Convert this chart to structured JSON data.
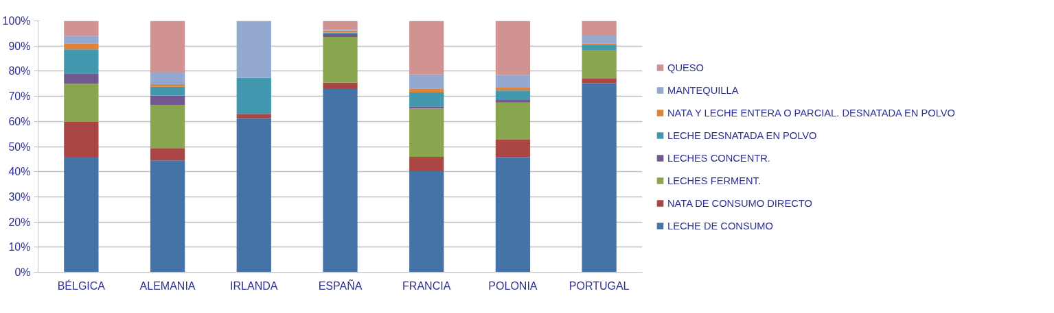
{
  "chart_data": {
    "type": "bar",
    "stacked": true,
    "categories": [
      "BÉLGICA",
      "ALEMANIA",
      "IRLANDA",
      "ESPAÑA",
      "FRANCIA",
      "POLONIA",
      "PORTUGAL"
    ],
    "series": [
      {
        "name": "LECHE DE CONSUMO",
        "color": "#4573a7",
        "values": [
          45.9,
          44.5,
          61.3,
          72.9,
          40.2,
          45.8,
          75.2
        ]
      },
      {
        "name": "NATA DE CONSUMO DIRECTO",
        "color": "#aa4643",
        "values": [
          13.9,
          4.9,
          1.7,
          2.6,
          5.7,
          6.9,
          2.0
        ]
      },
      {
        "name": "LECHES FERMENT.",
        "color": "#89a54e",
        "values": [
          15.2,
          17.2,
          0,
          18.1,
          19.2,
          14.8,
          11.2
        ]
      },
      {
        "name": "LECHES CONCENTR.",
        "color": "#71588f",
        "values": [
          4.1,
          3.6,
          0,
          1.1,
          0.9,
          1.0,
          0
        ]
      },
      {
        "name": "LECHE DESNATADA EN POLVO",
        "color": "#4198af",
        "values": [
          9.5,
          3.6,
          14.4,
          0.7,
          5.5,
          3.8,
          1.9
        ]
      },
      {
        "name": "NATA Y LECHE ENTERA O PARCIAL. DESNATADA EN POLVO",
        "color": "#db843d",
        "values": [
          2.5,
          1.0,
          0,
          0.7,
          1.6,
          1.1,
          0.8
        ]
      },
      {
        "name": "MANTEQUILLA",
        "color": "#93a9cf",
        "values": [
          3.0,
          4.6,
          22.6,
          0.4,
          5.6,
          5.0,
          3.3
        ]
      },
      {
        "name": "QUESO",
        "color": "#d19392",
        "values": [
          5.9,
          20.6,
          0,
          3.5,
          21.3,
          21.6,
          5.6
        ]
      }
    ],
    "ylim": [
      0,
      100
    ],
    "yticks": [
      {
        "value": 0,
        "label": "0%"
      },
      {
        "value": 10,
        "label": "10%"
      },
      {
        "value": 20,
        "label": "20%"
      },
      {
        "value": 30,
        "label": "30%"
      },
      {
        "value": 40,
        "label": "40%"
      },
      {
        "value": 50,
        "label": "50%"
      },
      {
        "value": 60,
        "label": "60%"
      },
      {
        "value": 70,
        "label": "70%"
      },
      {
        "value": 80,
        "label": "80%"
      },
      {
        "value": 90,
        "label": "90%"
      },
      {
        "value": 100,
        "label": "100%"
      }
    ],
    "grid": "y",
    "legend": "right"
  }
}
